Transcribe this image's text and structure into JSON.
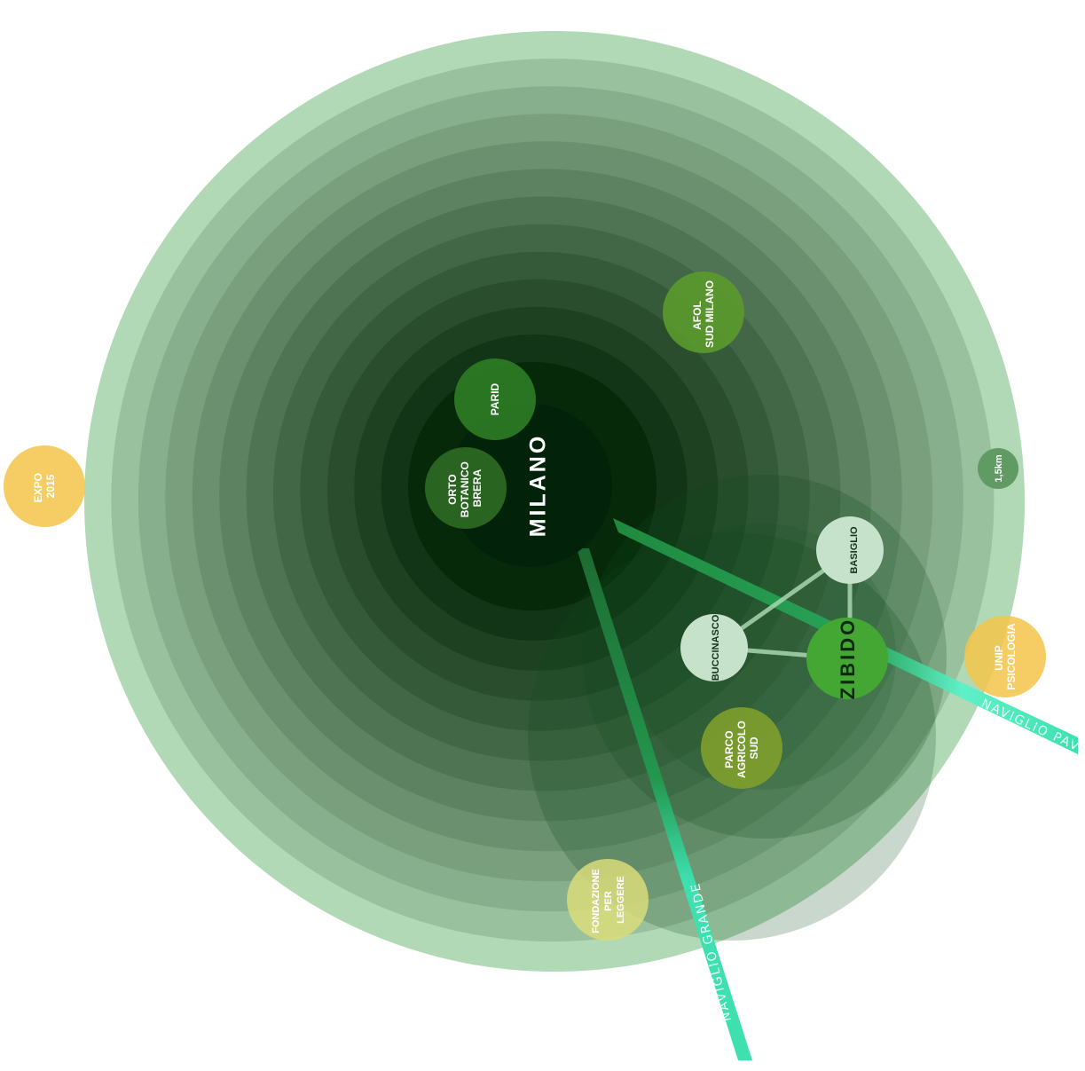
{
  "diagram": {
    "center_label": "MILANO",
    "zibido_label": "ZIBIDO",
    "scale_label": "1,5km",
    "canals": [
      {
        "name": "NAVIGLIO GRANDE"
      },
      {
        "name": "NAVIGLIO PAVESE"
      }
    ],
    "nodes": [
      {
        "key": "parid",
        "lines": [
          "PARID"
        ]
      },
      {
        "key": "afol",
        "lines": [
          "AFOL",
          "SUD MILANO"
        ]
      },
      {
        "key": "orto",
        "lines": [
          "ORTO",
          "BOTANICO",
          "BRERA"
        ]
      },
      {
        "key": "expo",
        "lines": [
          "EXPO",
          "2015"
        ]
      },
      {
        "key": "basiglio",
        "lines": [
          "BASIGLIO"
        ]
      },
      {
        "key": "buccinasco",
        "lines": [
          "BUCCINASCO"
        ]
      },
      {
        "key": "unip",
        "lines": [
          "UNIP",
          "PSICOLOGIA"
        ]
      },
      {
        "key": "parco",
        "lines": [
          "PARCO",
          "AGRICOLO",
          "SUD"
        ]
      },
      {
        "key": "fondazione",
        "lines": [
          "FONDAZIONE",
          "PER",
          "LEGGERE"
        ]
      }
    ],
    "colors": {
      "ring_light": "#b1d9b6",
      "ring_dark": "#06290a",
      "zibido": "#44a633",
      "yellow": "#f5c449",
      "pale": "#c7e2cb",
      "canal": "#3ee0b0",
      "canal_dark": "#1f7a3d"
    }
  }
}
